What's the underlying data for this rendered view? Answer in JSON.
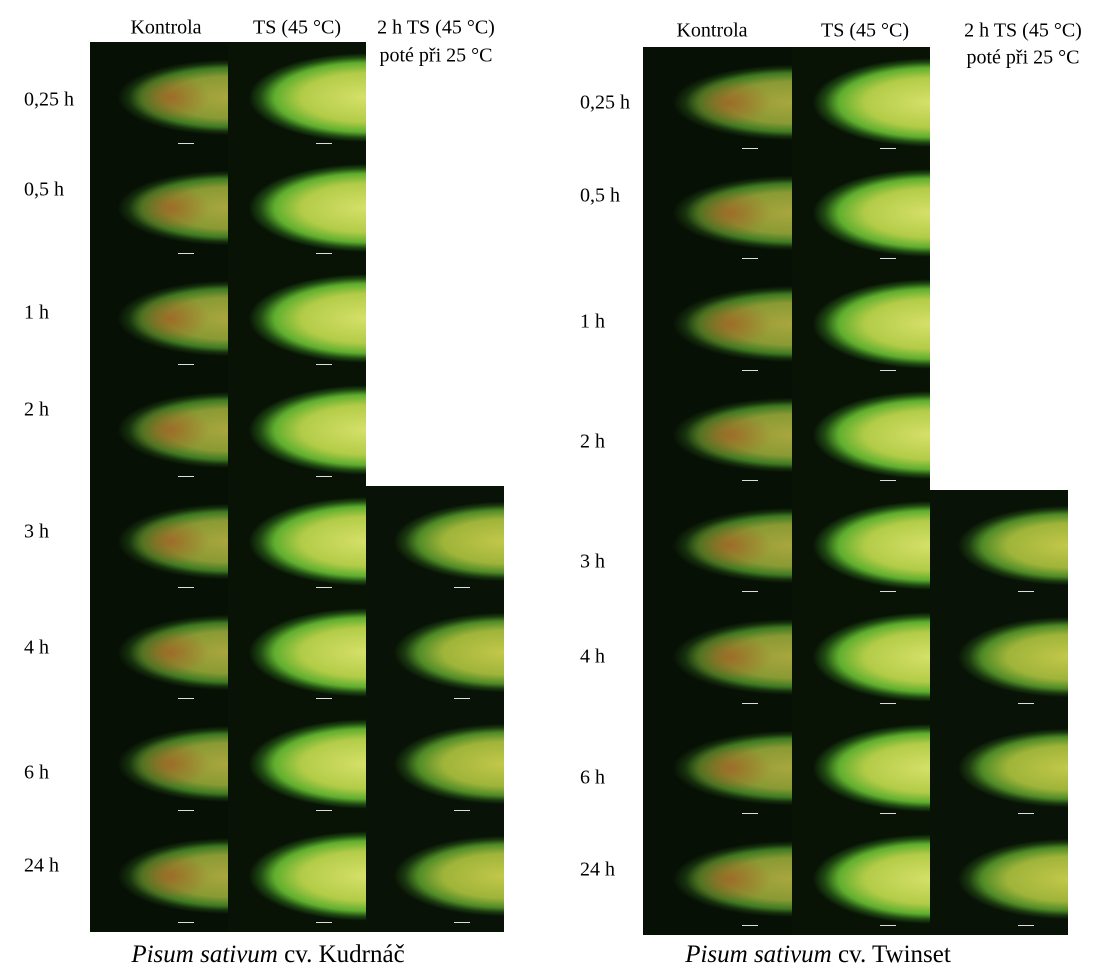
{
  "panels": [
    {
      "columns": [
        [
          "Kontrola"
        ],
        [
          "TS (45 °C)"
        ],
        [
          "2 h TS (45 °C)",
          "poté při 25 °C"
        ]
      ],
      "rows": [
        "0,25 h",
        "0,5 h",
        "1 h",
        "2 h",
        "3 h",
        "4 h",
        "6 h",
        "24 h"
      ],
      "caption": {
        "species": "Pisum sativum",
        "cultivar": "cv. Kudrnáč"
      }
    },
    {
      "columns": [
        [
          "Kontrola"
        ],
        [
          "TS (45 °C)"
        ],
        [
          "2 h TS (45 °C)",
          "poté při 25 °C"
        ]
      ],
      "rows": [
        "0,25 h",
        "0,5 h",
        "1 h",
        "2 h",
        "3 h",
        "4 h",
        "6 h",
        "24 h"
      ],
      "caption": {
        "species": "Pisum sativum",
        "cultivar": "cv. Twinset"
      }
    }
  ]
}
